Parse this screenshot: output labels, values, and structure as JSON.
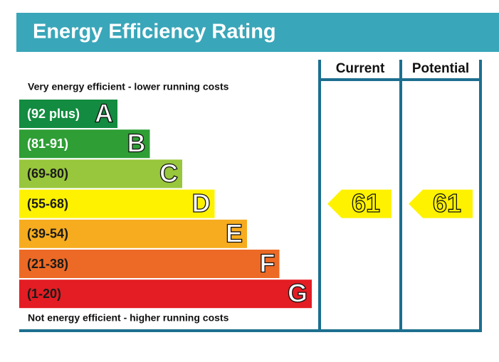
{
  "title": "Energy Efficiency Rating",
  "top_note": "Very energy efficient - lower running costs",
  "bottom_note": "Not energy efficient - higher running costs",
  "columns": [
    "Current",
    "Potential"
  ],
  "bands": [
    {
      "range": "(92 plus)",
      "letter": "A",
      "color": "#138b40",
      "text_color": "#ffffff"
    },
    {
      "range": "(81-91)",
      "letter": "B",
      "color": "#2e9e35",
      "text_color": "#ffffff"
    },
    {
      "range": "(69-80)",
      "letter": "C",
      "color": "#98c63c",
      "text_color": "#1a1a1a"
    },
    {
      "range": "(55-68)",
      "letter": "D",
      "color": "#fef200",
      "text_color": "#1a1a1a"
    },
    {
      "range": "(39-54)",
      "letter": "E",
      "color": "#f6ac1e",
      "text_color": "#1a1a1a"
    },
    {
      "range": "(21-38)",
      "letter": "F",
      "color": "#ec6a25",
      "text_color": "#1a1a1a"
    },
    {
      "range": "(1-20)",
      "letter": "G",
      "color": "#e31d23",
      "text_color": "#1a1a1a"
    }
  ],
  "ratings": [
    61,
    61
  ],
  "rating_color": "#fef200"
}
